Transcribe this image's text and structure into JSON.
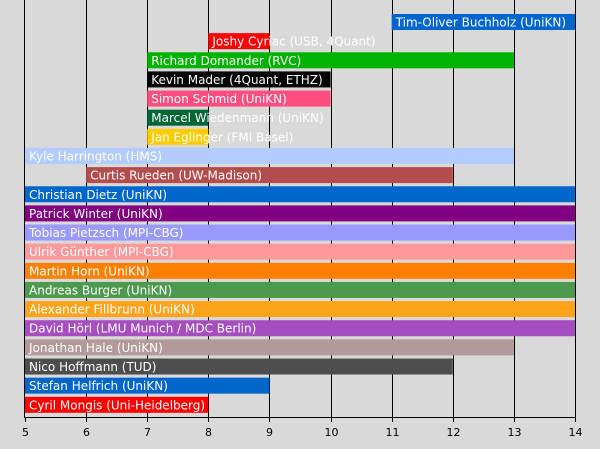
{
  "colors": {
    "background": "#d9d9d9",
    "axis": "#000000",
    "grid": "#000000"
  },
  "chart_data": {
    "type": "bar",
    "orientation": "horizontal",
    "title": "",
    "xlabel": "",
    "ylabel": "",
    "xlim": [
      5,
      14
    ],
    "xticks": [
      5,
      6,
      7,
      8,
      9,
      10,
      11,
      12,
      13,
      14
    ],
    "grid": true,
    "bars": [
      {
        "label": "Tim-Oliver Buchholz (UniKN)",
        "start": 11,
        "end": 14,
        "color": "#0066cc",
        "text_color": "#ffffff"
      },
      {
        "label": "Joshy Cyriac (USB, 4Quant)",
        "start": 8,
        "end": 9,
        "color": "#ff0000",
        "text_color": "#ffffff"
      },
      {
        "label": "Richard Domander (RVC)",
        "start": 7,
        "end": 13,
        "color": "#00b300",
        "text_color": "#ffffff"
      },
      {
        "label": "Kevin Mader (4Quant, ETHZ)",
        "start": 7,
        "end": 10,
        "color": "#000000",
        "text_color": "#ffffff"
      },
      {
        "label": "Simon Schmid (UniKN)",
        "start": 7,
        "end": 10,
        "color": "#ff4d80",
        "text_color": "#ffffff"
      },
      {
        "label": "Marcel Wiedenmann (UniKN)",
        "start": 7,
        "end": 8,
        "color": "#006633",
        "text_color": "#ffffff"
      },
      {
        "label": "Jan Eglinger (FMI Basel)",
        "start": 7,
        "end": 8,
        "color": "#ffcc00",
        "text_color": "#ffffff"
      },
      {
        "label": "Kyle Harrington (HMS)",
        "start": 5,
        "end": 13,
        "color": "#b3ccff",
        "text_color": "#ffffff"
      },
      {
        "label": "Curtis Rueden (UW-Madison)",
        "start": 6,
        "end": 12,
        "color": "#b34d4d",
        "text_color": "#ffffff"
      },
      {
        "label": "Christian Dietz (UniKN)",
        "start": 5,
        "end": 14,
        "color": "#0066cc",
        "text_color": "#ffffff"
      },
      {
        "label": "Patrick Winter (UniKN)",
        "start": 5,
        "end": 14,
        "color": "#800080",
        "text_color": "#ffffff"
      },
      {
        "label": "Tobias Pietzsch (MPI-CBG)",
        "start": 5,
        "end": 14,
        "color": "#9999ff",
        "text_color": "#ffffff"
      },
      {
        "label": "Ulrik Günther (MPI-CBG)",
        "start": 5,
        "end": 14,
        "color": "#ff9999",
        "text_color": "#ffffff"
      },
      {
        "label": "Martin Horn (UniKN)",
        "start": 5,
        "end": 14,
        "color": "#ff8000",
        "text_color": "#ffffff"
      },
      {
        "label": "Andreas Burger (UniKN)",
        "start": 5,
        "end": 14,
        "color": "#4d994d",
        "text_color": "#ffffff"
      },
      {
        "label": "Alexander Fillbrunn (UniKN)",
        "start": 5,
        "end": 14,
        "color": "#ffa31a",
        "text_color": "#ffffff"
      },
      {
        "label": "David Hörl (LMU Munich / MDC Berlin)",
        "start": 5,
        "end": 14,
        "color": "#a64dbf",
        "text_color": "#ffffff"
      },
      {
        "label": "Jonathan Hale (UniKN)",
        "start": 5,
        "end": 13,
        "color": "#b39999",
        "text_color": "#ffffff"
      },
      {
        "label": "Nico Hoffmann (TUD)",
        "start": 5,
        "end": 12,
        "color": "#4d4d4d",
        "text_color": "#ffffff"
      },
      {
        "label": "Stefan Helfrich (UniKN)",
        "start": 5,
        "end": 9,
        "color": "#0066cc",
        "text_color": "#ffffff"
      },
      {
        "label": "Cyril Mongis (Uni-Heidelberg)",
        "start": 5,
        "end": 8,
        "color": "#ff0000",
        "text_color": "#ffffff"
      }
    ]
  }
}
